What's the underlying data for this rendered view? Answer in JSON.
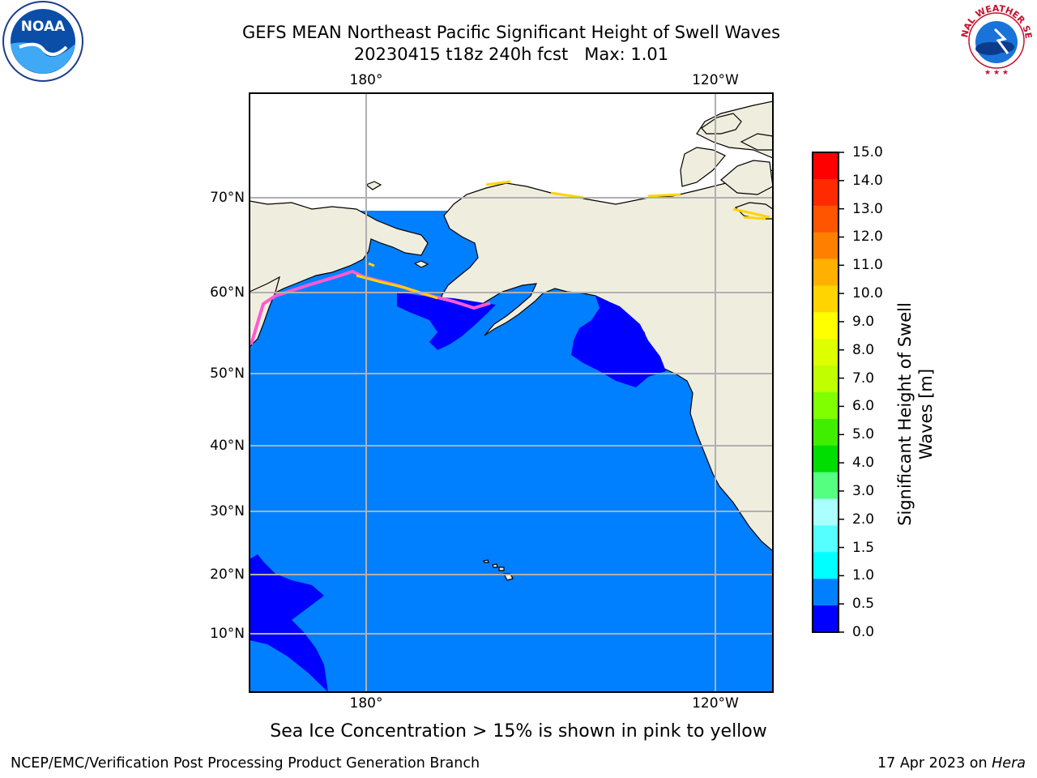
{
  "title": {
    "line1": "GEFS MEAN Northeast Pacific Significant Height of Swell Waves",
    "line2": "20230415 t18z 240h fcst   Max: 1.01"
  },
  "logos": {
    "left": "NOAA",
    "right": "NATIONAL WEATHER SERVICE"
  },
  "map": {
    "lat_labels": [
      "70°N",
      "60°N",
      "50°N",
      "40°N",
      "30°N",
      "20°N",
      "10°N"
    ],
    "lon_labels": [
      "180°",
      "120°W"
    ],
    "colors": {
      "ocean": "#0080ff",
      "ocean_low": "#0000ff",
      "land": "#efedde",
      "ice_pink": "#ff5ad2",
      "ice_yellow": "#ffd400",
      "grid": "#b0b0b0"
    }
  },
  "colorbar": {
    "title_line1": "Significant Height of Swell",
    "title_line2": "Waves [m]",
    "ticks": [
      "15.0",
      "14.0",
      "13.0",
      "12.0",
      "11.0",
      "10.0",
      "9.0",
      "8.0",
      "7.0",
      "6.0",
      "5.0",
      "4.0",
      "3.0",
      "2.0",
      "1.5",
      "1.0",
      "0.5",
      "0.0"
    ],
    "colors": [
      "#ff0000",
      "#ff2a00",
      "#ff5500",
      "#ff8000",
      "#ffb000",
      "#ffd400",
      "#ffff00",
      "#ddff00",
      "#c0ff00",
      "#80ff00",
      "#40ee00",
      "#00dd00",
      "#55ff80",
      "#aaffff",
      "#55ffff",
      "#00ffff",
      "#0080ff",
      "#0000ff"
    ]
  },
  "note": "Sea Ice Concentration > 15% is shown in pink to yellow",
  "footer": {
    "left": "NCEP/EMC/Verification Post Processing Product Generation Branch",
    "date": "17 Apr 2023 on ",
    "machine": "Hera"
  }
}
